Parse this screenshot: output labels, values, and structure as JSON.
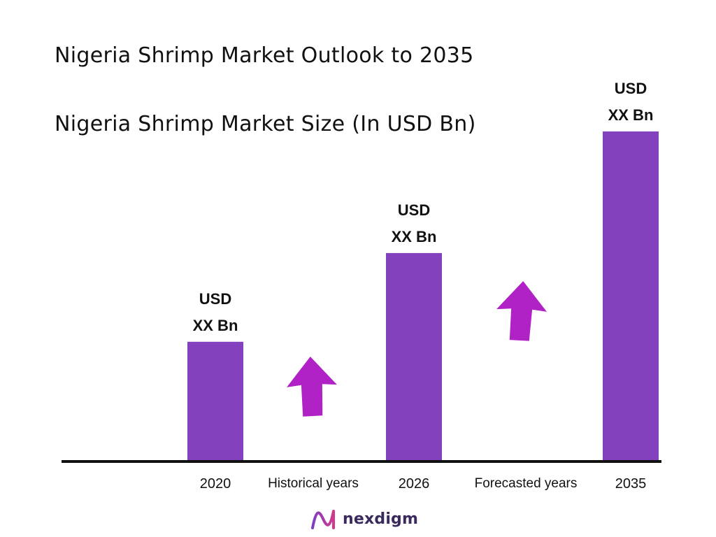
{
  "header": {
    "title": "Nigeria Shrimp Market Outlook to 2035",
    "subtitle": "Nigeria Shrimp Market Size (In USD Bn)"
  },
  "colors": {
    "bar": "#8441bd",
    "arrow": "#b021c6",
    "axis": "#111111",
    "brand": "#3a2a5e"
  },
  "chart_data": {
    "type": "bar",
    "categories": [
      "2020",
      "2026",
      "2035"
    ],
    "relative_values": [
      0.36,
      0.63,
      1.0
    ],
    "data_labels": [
      [
        "USD",
        "XX Bn"
      ],
      [
        "USD",
        "XX Bn"
      ],
      [
        "USD",
        "XX Bn"
      ]
    ],
    "period_labels": [
      "Historical years",
      "Forecasted years"
    ],
    "trend_arrows": [
      "up",
      "up"
    ],
    "grid": false,
    "legend": "none"
  },
  "brand": {
    "name": "nexdigm",
    "logo_icon": "nexdigm-wave-logo-icon"
  }
}
